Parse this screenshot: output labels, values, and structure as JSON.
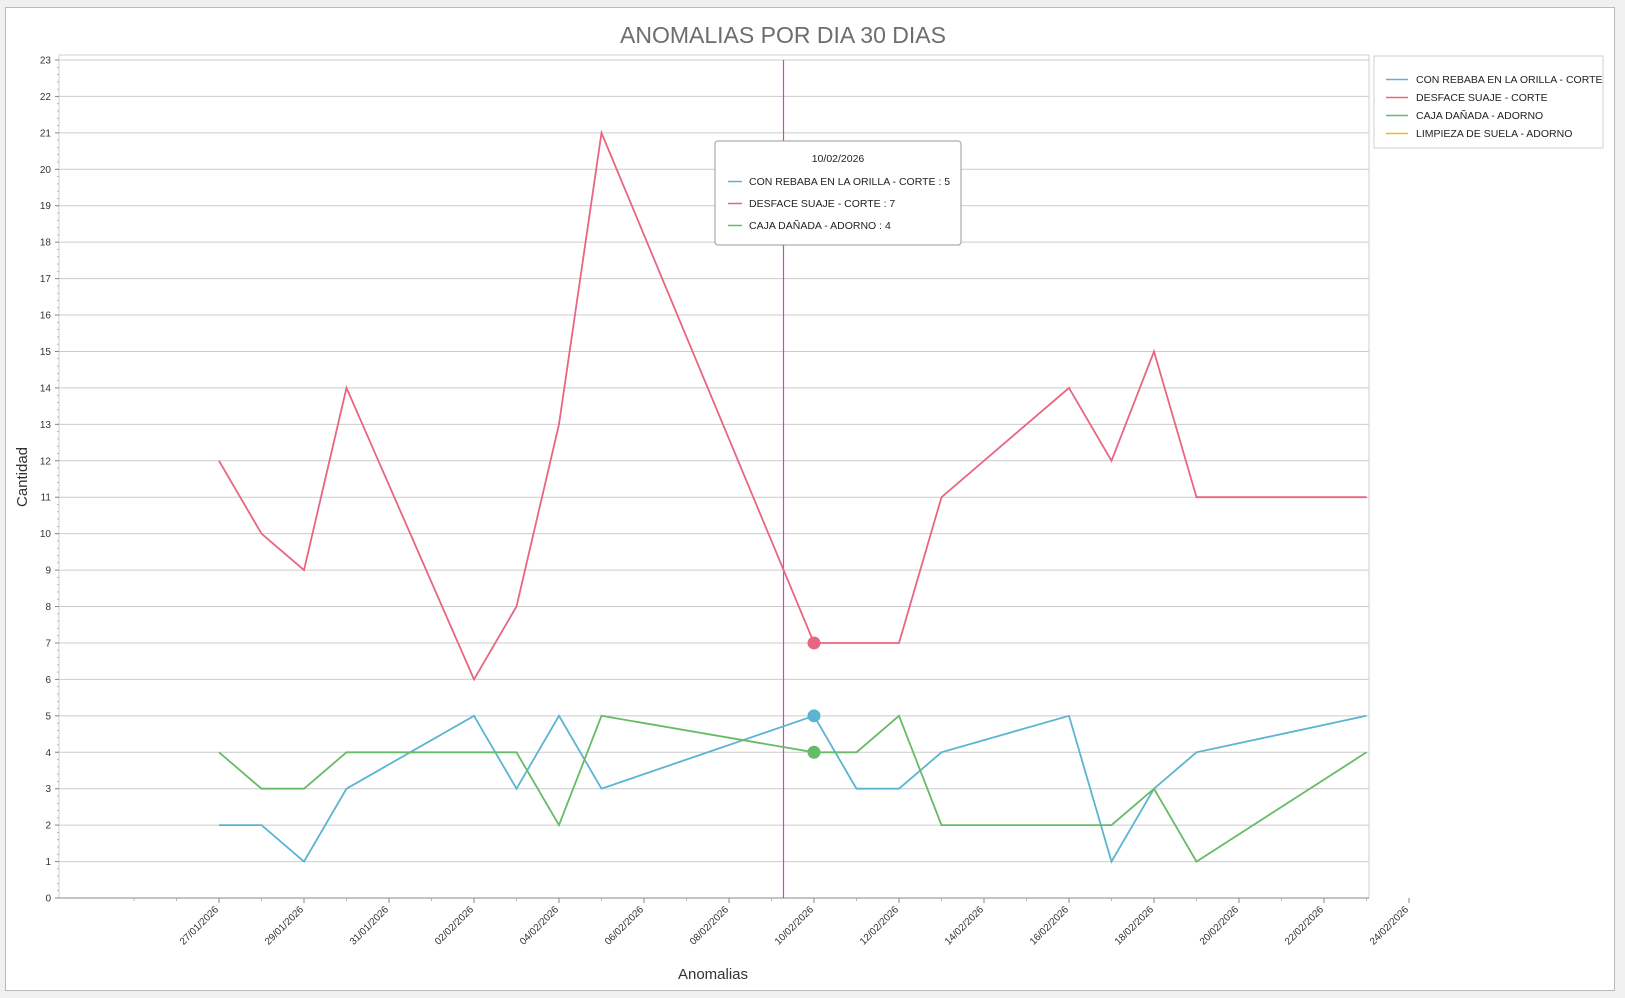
{
  "chart_data": {
    "type": "line",
    "title": "ANOMALIAS POR DIA 30 DIAS",
    "xlabel": "Anomalias",
    "ylabel": "Cantidad",
    "ylim": [
      0,
      23
    ],
    "xlim": [
      "2026-01-25",
      "2026-02-24"
    ],
    "y_ticks": [
      0,
      1,
      2,
      3,
      4,
      5,
      6,
      7,
      8,
      9,
      10,
      11,
      12,
      13,
      14,
      15,
      16,
      17,
      18,
      19,
      20,
      21,
      22,
      23
    ],
    "x_tick_labels": [
      "27/01/2026",
      "29/01/2026",
      "31/01/2026",
      "02/02/2026",
      "04/02/2026",
      "06/02/2026",
      "08/02/2026",
      "10/02/2026",
      "12/02/2026",
      "14/02/2026",
      "16/02/2026",
      "18/02/2026",
      "20/02/2026",
      "22/02/2026",
      "24/02/2026"
    ],
    "grid": true,
    "legend_position": "top-right",
    "series": [
      {
        "name": "CON REBABA EN LA ORILLA - CORTE",
        "color": "#5bb4d0",
        "points": [
          {
            "x": "2026-01-27",
            "y": 2
          },
          {
            "x": "2026-01-28",
            "y": 2
          },
          {
            "x": "2026-01-29",
            "y": 1
          },
          {
            "x": "2026-01-30",
            "y": 3
          },
          {
            "x": "2026-02-02",
            "y": 5
          },
          {
            "x": "2026-02-03",
            "y": 3
          },
          {
            "x": "2026-02-04",
            "y": 5
          },
          {
            "x": "2026-02-05",
            "y": 3
          },
          {
            "x": "2026-02-10",
            "y": 5
          },
          {
            "x": "2026-02-11",
            "y": 3
          },
          {
            "x": "2026-02-12",
            "y": 3
          },
          {
            "x": "2026-02-13",
            "y": 4
          },
          {
            "x": "2026-02-16",
            "y": 5
          },
          {
            "x": "2026-02-17",
            "y": 1
          },
          {
            "x": "2026-02-18",
            "y": 3
          },
          {
            "x": "2026-02-19",
            "y": 4
          },
          {
            "x": "2026-02-23",
            "y": 5
          }
        ]
      },
      {
        "name": "DESFACE SUAJE - CORTE",
        "color": "#e8667f",
        "points": [
          {
            "x": "2026-01-27",
            "y": 12
          },
          {
            "x": "2026-01-28",
            "y": 10
          },
          {
            "x": "2026-01-29",
            "y": 9
          },
          {
            "x": "2026-01-30",
            "y": 14
          },
          {
            "x": "2026-02-02",
            "y": 6
          },
          {
            "x": "2026-02-03",
            "y": 8
          },
          {
            "x": "2026-02-04",
            "y": 13
          },
          {
            "x": "2026-02-05",
            "y": 21
          },
          {
            "x": "2026-02-10",
            "y": 7
          },
          {
            "x": "2026-02-11",
            "y": 7
          },
          {
            "x": "2026-02-12",
            "y": 7
          },
          {
            "x": "2026-02-13",
            "y": 11
          },
          {
            "x": "2026-02-16",
            "y": 14
          },
          {
            "x": "2026-02-17",
            "y": 12
          },
          {
            "x": "2026-02-18",
            "y": 15
          },
          {
            "x": "2026-02-19",
            "y": 11
          },
          {
            "x": "2026-02-23",
            "y": 11
          }
        ]
      },
      {
        "name": "CAJA DAÑADA - ADORNO",
        "color": "#66bb66",
        "points": [
          {
            "x": "2026-01-27",
            "y": 4
          },
          {
            "x": "2026-01-28",
            "y": 3
          },
          {
            "x": "2026-01-29",
            "y": 3
          },
          {
            "x": "2026-01-30",
            "y": 4
          },
          {
            "x": "2026-02-02",
            "y": 4
          },
          {
            "x": "2026-02-03",
            "y": 4
          },
          {
            "x": "2026-02-04",
            "y": 2
          },
          {
            "x": "2026-02-05",
            "y": 5
          },
          {
            "x": "2026-02-10",
            "y": 4
          },
          {
            "x": "2026-02-11",
            "y": 4
          },
          {
            "x": "2026-02-12",
            "y": 5
          },
          {
            "x": "2026-02-13",
            "y": 2
          },
          {
            "x": "2026-02-16",
            "y": 2
          },
          {
            "x": "2026-02-17",
            "y": 2
          },
          {
            "x": "2026-02-18",
            "y": 3
          },
          {
            "x": "2026-02-19",
            "y": 1
          },
          {
            "x": "2026-02-23",
            "y": 4
          }
        ]
      },
      {
        "name": "LIMPIEZA DE SUELA - ADORNO",
        "color": "#e6c020",
        "points": []
      }
    ],
    "crosshair_x": "2026-02-09",
    "tooltip": {
      "title": "10/02/2026",
      "x": "2026-02-10",
      "items": [
        {
          "label": "CON REBABA EN LA ORILLA - CORTE : 5",
          "color": "#5bb4d0",
          "value": 5
        },
        {
          "label": "DESFACE SUAJE - CORTE : 7",
          "color": "#e8667f",
          "value": 7
        },
        {
          "label": "CAJA DAÑADA - ADORNO : 4",
          "color": "#66bb66",
          "value": 4
        }
      ]
    }
  }
}
